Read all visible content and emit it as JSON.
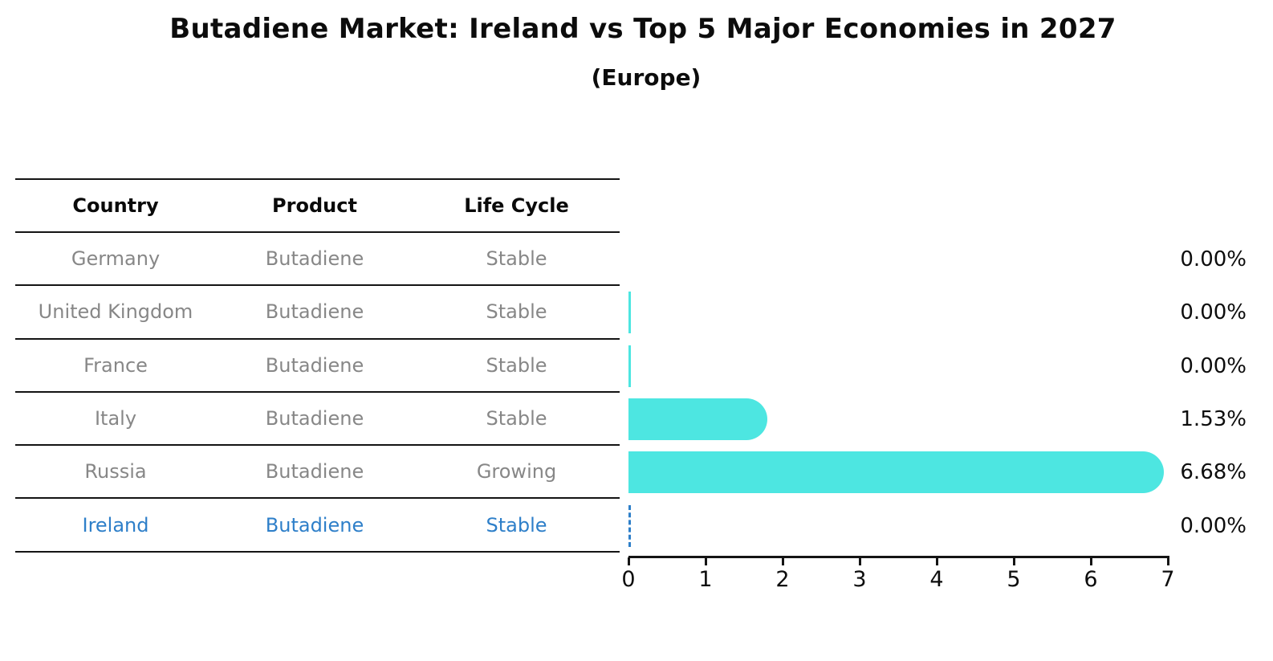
{
  "title": "Butadiene Market: Ireland vs Top 5 Major Economies in 2027",
  "subtitle": "(Europe)",
  "table": {
    "headers": [
      "Country",
      "Product",
      "Life Cycle"
    ],
    "rows": [
      {
        "country": "Germany",
        "product": "Butadiene",
        "life_cycle": "Stable",
        "highlighted": false
      },
      {
        "country": "United Kingdom",
        "product": "Butadiene",
        "life_cycle": "Stable",
        "highlighted": false
      },
      {
        "country": "France",
        "product": "Butadiene",
        "life_cycle": "Stable",
        "highlighted": false
      },
      {
        "country": "Italy",
        "product": "Butadiene",
        "life_cycle": "Stable",
        "highlighted": false
      },
      {
        "country": "Russia",
        "product": "Butadiene",
        "life_cycle": "Growing",
        "highlighted": false
      },
      {
        "country": "Ireland",
        "product": "Butadiene",
        "life_cycle": "Stable",
        "highlighted": true
      }
    ]
  },
  "chart_data": {
    "type": "bar",
    "orientation": "horizontal",
    "title": "Butadiene Market: Ireland vs Top 5 Major Economies in 2027",
    "subtitle": "(Europe)",
    "categories": [
      "Germany",
      "United Kingdom",
      "France",
      "Italy",
      "Russia",
      "Ireland"
    ],
    "values": [
      0.0,
      0.0,
      0.0,
      1.53,
      6.68,
      0.0
    ],
    "value_labels": [
      "0.00%",
      "0.00%",
      "0.00%",
      "1.53%",
      "6.68%",
      "0.00%"
    ],
    "bar_styles": [
      "none",
      "hairline",
      "hairline",
      "bar",
      "bar",
      "dashed-zero"
    ],
    "xlabel": "",
    "ylabel": "",
    "xlim": [
      0,
      7
    ],
    "x_ticks": [
      "0",
      "1",
      "2",
      "3",
      "4",
      "5",
      "6",
      "7"
    ],
    "grid": false,
    "legend": false
  },
  "colors": {
    "bar": "#4de6e1",
    "highlight_blue": "#2e7fc9",
    "row_text_gray": "#878787",
    "header_text": "#0a0a0a",
    "axis_black": "#141414"
  }
}
